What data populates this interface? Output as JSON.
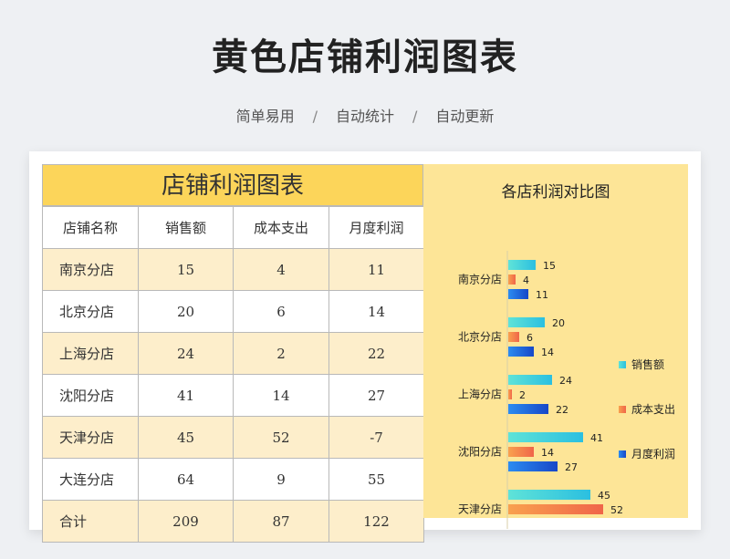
{
  "header": {
    "title": "黄色店铺利润图表",
    "tags": [
      "简单易用",
      "自动统计",
      "自动更新"
    ],
    "separator": "/"
  },
  "table": {
    "title": "店铺利润图表",
    "columns": [
      "店铺名称",
      "销售额",
      "成本支出",
      "月度利润"
    ],
    "rows": [
      [
        "南京分店",
        "15",
        "4",
        "11"
      ],
      [
        "北京分店",
        "20",
        "6",
        "14"
      ],
      [
        "上海分店",
        "24",
        "2",
        "22"
      ],
      [
        "沈阳分店",
        "41",
        "14",
        "27"
      ],
      [
        "天津分店",
        "45",
        "52",
        "-7"
      ],
      [
        "大连分店",
        "64",
        "9",
        "55"
      ],
      [
        "合计",
        "209",
        "87",
        "122"
      ]
    ]
  },
  "chart_data": {
    "type": "bar",
    "orientation": "horizontal",
    "title": "各店利润对比图",
    "categories": [
      "南京分店",
      "北京分店",
      "上海分店",
      "沈阳分店",
      "天津分店"
    ],
    "series": [
      {
        "name": "销售额",
        "values": [
          15,
          20,
          24,
          41,
          45
        ],
        "color": "#3ed6cf"
      },
      {
        "name": "成本支出",
        "values": [
          4,
          6,
          2,
          14,
          52
        ],
        "color": "#f47a4c"
      },
      {
        "name": "月度利润",
        "values": [
          11,
          14,
          22,
          27,
          null
        ],
        "color": "#1f72e0"
      }
    ],
    "legend": "right",
    "grid": false,
    "data_labels": true
  }
}
